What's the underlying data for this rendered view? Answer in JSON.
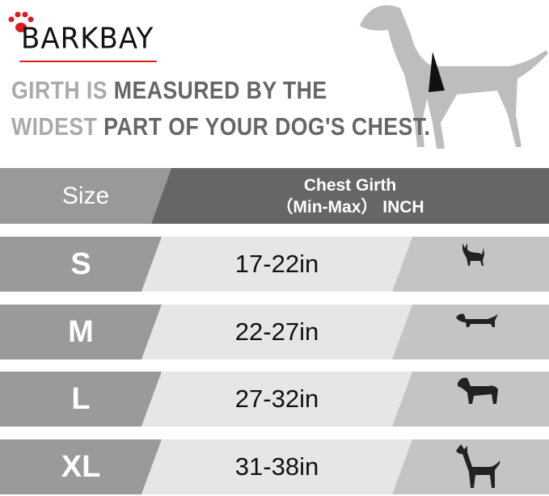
{
  "brand": {
    "logo_text": "BARKBAY",
    "accent_color": "#d91e1e"
  },
  "headline": {
    "line1_light": "GIRTH IS ",
    "line1_dark": "MEASURED BY THE",
    "line2_light": "WIDEST ",
    "line2_dark": "PART OF YOUR DOG'S CHEST."
  },
  "table": {
    "header": {
      "size": "Size",
      "girth_line1": "Chest Girth",
      "girth_line2": "（Min-Max） INCH"
    },
    "rows": [
      {
        "size": "S",
        "girth": "17-22in",
        "icon": "chihuahua-icon"
      },
      {
        "size": "M",
        "girth": "22-27in",
        "icon": "dachshund-icon"
      },
      {
        "size": "L",
        "girth": "27-32in",
        "icon": "labrador-icon"
      },
      {
        "size": "XL",
        "girth": "31-38in",
        "icon": "great-dane-icon"
      }
    ]
  }
}
